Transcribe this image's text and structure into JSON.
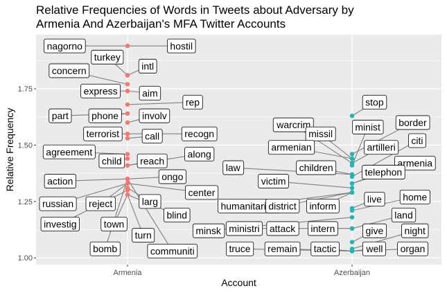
{
  "chart_data": {
    "type": "scatter",
    "title_lines": [
      "Relative Frequencies of Words in Tweets about Adversary by",
      "Armenia And Azerbaijan's MFA Twitter Accounts"
    ],
    "xlabel": "Account",
    "ylabel": "Relative Frequency",
    "categories": [
      "Armenia",
      "Azerbaijan"
    ],
    "ylim": [
      0.97,
      1.99
    ],
    "yticks": [
      1.0,
      1.25,
      1.5,
      1.75
    ],
    "ytick_labels": [
      "1.00",
      "1.25",
      "1.50",
      "1.75"
    ],
    "grid": true,
    "legend": "none",
    "colors": {
      "Armenia": "#f8766d",
      "Azerbaijan": "#21b5b5",
      "panel_bg": "#ebebeb",
      "grid": "#ffffff",
      "connector": "#7f7f7f"
    },
    "series": [
      {
        "account": "Armenia",
        "points": [
          {
            "word": "nagorno",
            "y": 1.94,
            "label_x": 0.72,
            "label_y": 1.94
          },
          {
            "word": "hostil",
            "y": 1.94,
            "label_x": 1.24,
            "label_y": 1.94
          },
          {
            "word": "turkey",
            "y": 1.81,
            "label_x": 0.91,
            "label_y": 1.89
          },
          {
            "word": "intl",
            "y": 1.81,
            "label_x": 1.09,
            "label_y": 1.85
          },
          {
            "word": "concern",
            "y": 1.77,
            "label_x": 0.74,
            "label_y": 1.83
          },
          {
            "word": "express",
            "y": 1.74,
            "label_x": 0.88,
            "label_y": 1.74
          },
          {
            "word": "aim",
            "y": 1.74,
            "label_x": 1.1,
            "label_y": 1.73
          },
          {
            "word": "rep",
            "y": 1.68,
            "label_x": 1.29,
            "label_y": 1.69
          },
          {
            "word": "phone",
            "y": 1.64,
            "label_x": 0.9,
            "label_y": 1.63
          },
          {
            "word": "part",
            "y": 1.64,
            "label_x": 0.7,
            "label_y": 1.63
          },
          {
            "word": "involv",
            "y": 1.6,
            "label_x": 1.12,
            "label_y": 1.63
          },
          {
            "word": "recogn",
            "y": 1.55,
            "label_x": 1.32,
            "label_y": 1.55
          },
          {
            "word": "terrorist",
            "y": 1.55,
            "label_x": 0.89,
            "label_y": 1.55
          },
          {
            "word": "call",
            "y": 1.53,
            "label_x": 1.11,
            "label_y": 1.54
          },
          {
            "word": "agreement",
            "y": 1.46,
            "label_x": 0.74,
            "label_y": 1.47
          },
          {
            "word": "child",
            "y": 1.44,
            "label_x": 0.93,
            "label_y": 1.43
          },
          {
            "word": "reach",
            "y": 1.41,
            "label_x": 1.11,
            "label_y": 1.43
          },
          {
            "word": "along",
            "y": 1.41,
            "label_x": 1.32,
            "label_y": 1.46
          },
          {
            "word": "action",
            "y": 1.35,
            "label_x": 0.7,
            "label_y": 1.34
          },
          {
            "word": "ongo",
            "y": 1.35,
            "label_x": 1.2,
            "label_y": 1.36
          },
          {
            "word": "center",
            "y": 1.33,
            "label_x": 1.33,
            "label_y": 1.29
          },
          {
            "word": "russian",
            "y": 1.33,
            "label_x": 0.69,
            "label_y": 1.24
          },
          {
            "word": "reject",
            "y": 1.33,
            "label_x": 0.88,
            "label_y": 1.24
          },
          {
            "word": "larg",
            "y": 1.31,
            "label_x": 1.1,
            "label_y": 1.25
          },
          {
            "word": "blind",
            "y": 1.28,
            "label_x": 1.22,
            "label_y": 1.19
          },
          {
            "word": "investig",
            "y": 1.3,
            "label_x": 0.7,
            "label_y": 1.15
          },
          {
            "word": "town",
            "y": 1.28,
            "label_x": 0.94,
            "label_y": 1.15
          },
          {
            "word": "turn",
            "y": 1.28,
            "label_x": 1.07,
            "label_y": 1.1
          },
          {
            "word": "bomb",
            "y": 1.35,
            "label_x": 0.9,
            "label_y": 1.04
          },
          {
            "word": "communiti",
            "y": 1.35,
            "label_x": 1.2,
            "label_y": 1.03
          }
        ]
      },
      {
        "account": "Azerbaijan",
        "points": [
          {
            "word": "stop",
            "y": 1.63,
            "label_x": 2.1,
            "label_y": 1.69
          },
          {
            "word": "border",
            "y": 1.46,
            "label_x": 2.27,
            "label_y": 1.6
          },
          {
            "word": "warcrim",
            "y": 1.42,
            "label_x": 1.74,
            "label_y": 1.59
          },
          {
            "word": "minist",
            "y": 1.41,
            "label_x": 2.07,
            "label_y": 1.58
          },
          {
            "word": "missil",
            "y": 1.44,
            "label_x": 1.86,
            "label_y": 1.55
          },
          {
            "word": "citi",
            "y": 1.36,
            "label_x": 2.29,
            "label_y": 1.52
          },
          {
            "word": "armenian",
            "y": 1.44,
            "label_x": 1.73,
            "label_y": 1.49
          },
          {
            "word": "artilleri",
            "y": 1.42,
            "label_x": 2.13,
            "label_y": 1.49
          },
          {
            "word": "law",
            "y": 1.37,
            "label_x": 1.47,
            "label_y": 1.4
          },
          {
            "word": "children",
            "y": 1.37,
            "label_x": 1.84,
            "label_y": 1.4
          },
          {
            "word": "armenia",
            "y": 1.33,
            "label_x": 2.28,
            "label_y": 1.42
          },
          {
            "word": "telephon",
            "y": 1.33,
            "label_x": 2.14,
            "label_y": 1.38
          },
          {
            "word": "victim",
            "y": 1.31,
            "label_x": 1.65,
            "label_y": 1.34
          },
          {
            "word": "live",
            "y": 1.22,
            "label_x": 2.1,
            "label_y": 1.26
          },
          {
            "word": "home",
            "y": 1.21,
            "label_x": 2.28,
            "label_y": 1.27
          },
          {
            "word": "humanitarian",
            "y": 1.29,
            "label_x": 1.54,
            "label_y": 1.23
          },
          {
            "word": "district",
            "y": 1.29,
            "label_x": 1.69,
            "label_y": 1.23
          },
          {
            "word": "inform",
            "y": 1.29,
            "label_x": 1.87,
            "label_y": 1.23
          },
          {
            "word": "land",
            "y": 1.13,
            "label_x": 2.23,
            "label_y": 1.19
          },
          {
            "word": "minsk",
            "y": 1.18,
            "label_x": 1.36,
            "label_y": 1.12
          },
          {
            "word": "ministri",
            "y": 1.13,
            "label_x": 1.52,
            "label_y": 1.13
          },
          {
            "word": "attack",
            "y": 1.13,
            "label_x": 1.69,
            "label_y": 1.13
          },
          {
            "word": "intern",
            "y": 1.13,
            "label_x": 1.87,
            "label_y": 1.13
          },
          {
            "word": "give",
            "y": 1.07,
            "label_x": 2.1,
            "label_y": 1.12
          },
          {
            "word": "night",
            "y": 1.04,
            "label_x": 2.28,
            "label_y": 1.12
          },
          {
            "word": "truce",
            "y": 1.03,
            "label_x": 1.5,
            "label_y": 1.04
          },
          {
            "word": "remain",
            "y": 1.03,
            "label_x": 1.69,
            "label_y": 1.04
          },
          {
            "word": "tactic",
            "y": 1.03,
            "label_x": 1.88,
            "label_y": 1.04
          },
          {
            "word": "well",
            "y": 1.03,
            "label_x": 2.1,
            "label_y": 1.04
          },
          {
            "word": "organ",
            "y": 1.03,
            "label_x": 2.27,
            "label_y": 1.04
          }
        ]
      }
    ]
  }
}
